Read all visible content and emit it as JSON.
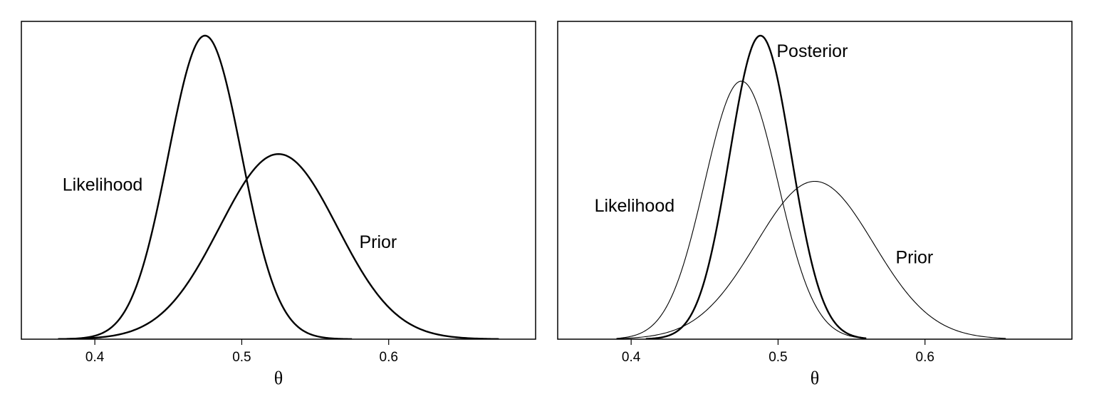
{
  "chart_data": [
    {
      "type": "line",
      "xlabel": "θ",
      "ylabel": "",
      "xlim": [
        0.35,
        0.7
      ],
      "y_axis_shown": false,
      "grid": false,
      "xticks": [
        0.4,
        0.5,
        0.6
      ],
      "tick_labels": [
        "0.4",
        "0.5",
        "0.6"
      ],
      "ylim": [
        0,
        1.05
      ],
      "series": [
        {
          "name": "Likelihood",
          "distribution": "normal",
          "mean": 0.475,
          "sd": 0.025,
          "peak": 1.0,
          "x_range": [
            0.375,
            0.575
          ],
          "weight": "bold"
        },
        {
          "name": "Prior",
          "distribution": "normal",
          "mean": 0.525,
          "sd": 0.04,
          "peak": 0.61,
          "x_range": [
            0.375,
            0.675
          ],
          "weight": "bold"
        }
      ],
      "annotations": [
        {
          "text": "Likelihood",
          "x": 0.378,
          "y": 0.49
        },
        {
          "text": "Prior",
          "x": 0.58,
          "y": 0.3
        }
      ]
    },
    {
      "type": "line",
      "xlabel": "θ",
      "ylabel": "",
      "xlim": [
        0.35,
        0.7
      ],
      "y_axis_shown": false,
      "grid": false,
      "xticks": [
        0.4,
        0.5,
        0.6
      ],
      "tick_labels": [
        "0.4",
        "0.5",
        "0.6"
      ],
      "ylim": [
        0,
        1.05
      ],
      "series": [
        {
          "name": "Likelihood",
          "distribution": "normal",
          "mean": 0.475,
          "sd": 0.025,
          "peak": 0.85,
          "x_range": [
            0.39,
            0.56
          ],
          "weight": "thin"
        },
        {
          "name": "Posterior",
          "distribution": "normal",
          "mean": 0.488,
          "sd": 0.021,
          "peak": 1.0,
          "x_range": [
            0.41,
            0.56
          ],
          "weight": "bold"
        },
        {
          "name": "Prior",
          "distribution": "normal",
          "mean": 0.525,
          "sd": 0.04,
          "peak": 0.52,
          "x_range": [
            0.39,
            0.655
          ],
          "weight": "thin"
        }
      ],
      "annotations": [
        {
          "text": "Posterior",
          "x": 0.499,
          "y": 0.93
        },
        {
          "text": "Likelihood",
          "x": 0.375,
          "y": 0.42
        },
        {
          "text": "Prior",
          "x": 0.58,
          "y": 0.25
        }
      ]
    }
  ]
}
